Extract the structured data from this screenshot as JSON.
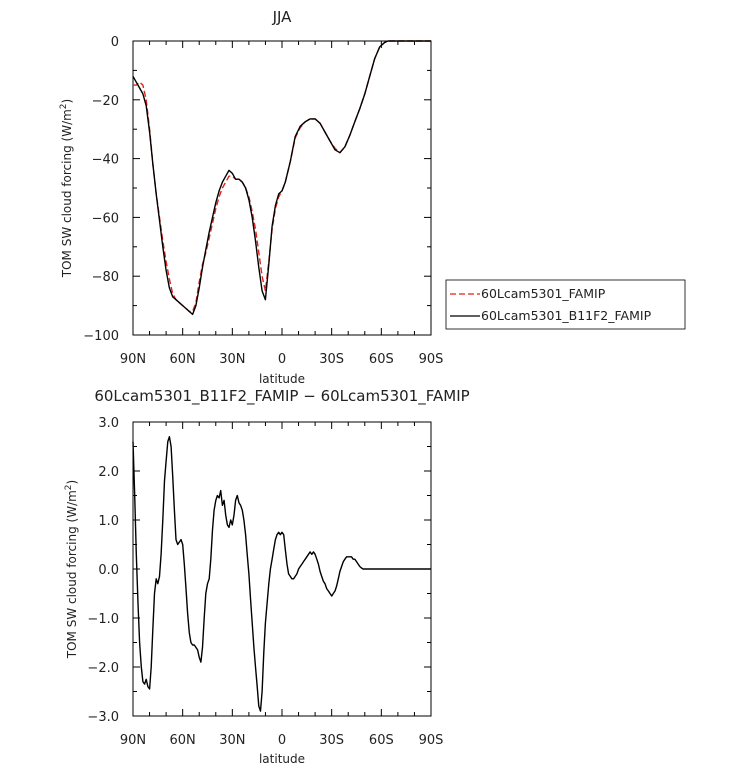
{
  "chart_data": [
    {
      "type": "line",
      "title": "JJA",
      "xlabel": "latitude",
      "ylabel": "TOM SW cloud forcing (W/m",
      "ylabel_sup": "2",
      "ylabel_close": ")",
      "xlim": [
        90,
        -90
      ],
      "ylim": [
        -100,
        0
      ],
      "xticks": [
        90,
        60,
        30,
        0,
        -30,
        -60,
        -90
      ],
      "xtick_labels": [
        "90N",
        "60N",
        "30N",
        "0",
        "30S",
        "60S",
        "90S"
      ],
      "yticks": [
        0,
        -20,
        -40,
        -60,
        -80,
        -100
      ],
      "ytick_labels": [
        "0",
        "−20",
        "−40",
        "−60",
        "−80",
        "−100"
      ],
      "legend": "outside-right",
      "series": [
        {
          "name": "60Lcam5301_FAMIP",
          "color": "#e0201b",
          "dash": "dashed",
          "x": [
            90,
            88,
            86,
            84,
            82,
            80,
            78,
            76,
            74,
            72,
            70,
            68,
            66,
            64,
            62,
            60,
            58,
            56,
            54,
            52,
            50,
            48,
            46,
            44,
            42,
            40,
            38,
            36,
            34,
            32,
            30,
            28,
            26,
            24,
            22,
            20,
            18,
            16,
            14,
            12,
            10,
            8,
            6,
            4,
            2,
            0,
            -2,
            -5,
            -8,
            -11,
            -14,
            -17,
            -20,
            -23,
            -26,
            -29,
            -32,
            -35,
            -38,
            -41,
            -44,
            -47,
            -50,
            -53,
            -56,
            -59,
            -62,
            -64,
            -66,
            -68,
            -70,
            -75,
            -80,
            -85,
            -90
          ],
          "y": [
            -15,
            -15,
            -14,
            -15,
            -20,
            -30,
            -42,
            -52,
            -60,
            -68,
            -75,
            -81,
            -86,
            -88,
            -89,
            -90,
            -91,
            -92,
            -92,
            -89,
            -82,
            -76,
            -72,
            -67,
            -62,
            -57,
            -53,
            -50,
            -48,
            -46,
            -46,
            -47,
            -47,
            -48,
            -50,
            -53,
            -58,
            -64,
            -72,
            -80,
            -85,
            -75,
            -64,
            -57,
            -53,
            -51,
            -48,
            -41,
            -33,
            -29.5,
            -27.5,
            -26.5,
            -26.5,
            -28,
            -31,
            -34,
            -36.5,
            -38,
            -36,
            -32,
            -27.5,
            -23,
            -18,
            -12,
            -6,
            -2,
            -0.5,
            0,
            0,
            0,
            0,
            0,
            0,
            0,
            0
          ]
        },
        {
          "name": "60Lcam5301_B11F2_FAMIP",
          "color": "#000000",
          "dash": "solid",
          "x": [
            90,
            88,
            86,
            84,
            82,
            80,
            78,
            76,
            74,
            72,
            70,
            68,
            66,
            64,
            62,
            60,
            58,
            56,
            54,
            52,
            50,
            48,
            46,
            44,
            42,
            40,
            38,
            36,
            34,
            32,
            30,
            28,
            26,
            24,
            22,
            20,
            18,
            16,
            14,
            12,
            10,
            8,
            6,
            4,
            2,
            0,
            -2,
            -5,
            -8,
            -11,
            -14,
            -17,
            -20,
            -23,
            -26,
            -29,
            -32,
            -35,
            -38,
            -41,
            -44,
            -47,
            -50,
            -53,
            -56,
            -59,
            -62,
            -64,
            -66,
            -68,
            -70,
            -75,
            -80,
            -85,
            -90
          ],
          "y": [
            -12,
            -14,
            -16,
            -18,
            -22,
            -31,
            -42,
            -52,
            -61,
            -70,
            -78,
            -84,
            -87,
            -88,
            -89,
            -90,
            -91,
            -92,
            -93,
            -90,
            -84,
            -77,
            -71,
            -65,
            -60,
            -55,
            -51,
            -48,
            -46,
            -44,
            -45,
            -47,
            -47,
            -48,
            -50,
            -54,
            -60,
            -68,
            -77,
            -85,
            -88,
            -76,
            -63,
            -56,
            -52,
            -51,
            -48,
            -41,
            -32.5,
            -29,
            -27.5,
            -26.5,
            -26.5,
            -28,
            -31,
            -34,
            -37,
            -38,
            -36,
            -32,
            -27.5,
            -23,
            -18,
            -12,
            -6,
            -2,
            -0.5,
            0,
            0,
            0,
            0,
            0,
            0,
            0,
            0
          ]
        }
      ]
    },
    {
      "type": "line",
      "title": "60Lcam5301_B11F2_FAMIP − 60Lcam5301_FAMIP",
      "xlabel": "latitude",
      "ylabel": "TOM SW cloud forcing (W/m",
      "ylabel_sup": "2",
      "ylabel_close": ")",
      "xlim": [
        90,
        -90
      ],
      "ylim": [
        -3,
        3
      ],
      "xticks": [
        90,
        60,
        30,
        0,
        -30,
        -60,
        -90
      ],
      "xtick_labels": [
        "90N",
        "60N",
        "30N",
        "0",
        "30S",
        "60S",
        "90S"
      ],
      "yticks": [
        3,
        2,
        1,
        0,
        -1,
        -2,
        -3
      ],
      "ytick_labels": [
        "3.0",
        "2.0",
        "1.0",
        "0.0",
        "−1.0",
        "−2.0",
        "−3.0"
      ],
      "series": [
        {
          "color": "#000000",
          "dash": "solid",
          "x": [
            90,
            89,
            88,
            87,
            86,
            85,
            84,
            83,
            82,
            81,
            80,
            79,
            78,
            77,
            76,
            75,
            74,
            73,
            72,
            71,
            70,
            69,
            68,
            67,
            66,
            65,
            64,
            63,
            62,
            61,
            60,
            59,
            58,
            57,
            56,
            55,
            54,
            53,
            52,
            51,
            50,
            49,
            48,
            47,
            46,
            45,
            44,
            43,
            42,
            41,
            40,
            39,
            38,
            37,
            36,
            35,
            34,
            33,
            32,
            31,
            30,
            29,
            28,
            27,
            26,
            25,
            24,
            23,
            22,
            21,
            20,
            19,
            18,
            17,
            16,
            15,
            14,
            13,
            12,
            11,
            10,
            9,
            8,
            7,
            6,
            5,
            4,
            3,
            2,
            1,
            0,
            -1,
            -2,
            -3,
            -4,
            -5,
            -6,
            -7,
            -8,
            -9,
            -10,
            -11,
            -12,
            -13,
            -14,
            -15,
            -16,
            -17,
            -18,
            -19,
            -20,
            -21,
            -22,
            -23,
            -24,
            -25,
            -26,
            -27,
            -28,
            -29,
            -30,
            -31,
            -32,
            -33,
            -34,
            -35,
            -36,
            -37,
            -38,
            -39,
            -40,
            -41,
            -42,
            -43,
            -44,
            -45,
            -46,
            -47,
            -48,
            -49,
            -50,
            -51,
            -52,
            -53,
            -54,
            -55,
            -56,
            -57,
            -58,
            -59,
            -60,
            -62,
            -64,
            -66,
            -68,
            -70,
            -75,
            -80,
            -85,
            -90
          ],
          "y": [
            2.6,
            1.5,
            0.3,
            -0.7,
            -1.5,
            -2.0,
            -2.3,
            -2.35,
            -2.25,
            -2.4,
            -2.45,
            -2.0,
            -1.2,
            -0.5,
            -0.2,
            -0.3,
            -0.15,
            0.3,
            1.0,
            1.8,
            2.2,
            2.6,
            2.7,
            2.5,
            1.9,
            1.2,
            0.6,
            0.5,
            0.55,
            0.6,
            0.5,
            0.1,
            -0.4,
            -0.9,
            -1.3,
            -1.5,
            -1.55,
            -1.55,
            -1.6,
            -1.65,
            -1.8,
            -1.9,
            -1.6,
            -1.0,
            -0.5,
            -0.3,
            -0.2,
            0.2,
            0.8,
            1.2,
            1.4,
            1.5,
            1.45,
            1.6,
            1.3,
            1.4,
            1.1,
            0.9,
            0.85,
            1.0,
            0.9,
            1.1,
            1.4,
            1.5,
            1.35,
            1.3,
            1.2,
            1.0,
            0.7,
            0.3,
            -0.1,
            -0.6,
            -1.1,
            -1.6,
            -2.0,
            -2.4,
            -2.8,
            -2.9,
            -2.5,
            -1.7,
            -1.1,
            -0.7,
            -0.3,
            0.0,
            0.2,
            0.4,
            0.6,
            0.7,
            0.75,
            0.7,
            0.75,
            0.7,
            0.4,
            0.1,
            -0.1,
            -0.15,
            -0.2,
            -0.2,
            -0.15,
            -0.1,
            0.0,
            0.05,
            0.1,
            0.15,
            0.2,
            0.25,
            0.3,
            0.35,
            0.3,
            0.35,
            0.3,
            0.2,
            0.1,
            -0.05,
            -0.15,
            -0.25,
            -0.3,
            -0.4,
            -0.45,
            -0.5,
            -0.55,
            -0.5,
            -0.45,
            -0.35,
            -0.2,
            -0.05,
            0.05,
            0.15,
            0.2,
            0.25,
            0.25,
            0.25,
            0.25,
            0.2,
            0.2,
            0.15,
            0.1,
            0.05,
            0.02,
            0.0,
            0.0,
            0.0,
            0.0,
            0.0,
            0.0,
            0.0,
            0.0,
            0.0,
            0.0,
            0.0,
            0.0,
            0.0,
            0.0,
            0.0,
            0.0,
            0.0,
            0.0,
            0.0,
            0.0,
            0.0
          ]
        }
      ]
    }
  ]
}
